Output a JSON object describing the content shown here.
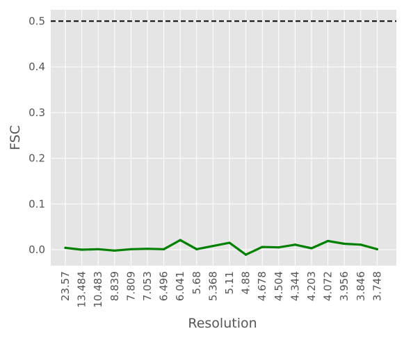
{
  "chart_data": {
    "type": "line",
    "title": "",
    "xlabel": "Resolution",
    "ylabel": "FSC",
    "categories": [
      "23.57",
      "13.484",
      "10.483",
      "8.839",
      "7.809",
      "7.053",
      "6.496",
      "6.041",
      "5.68",
      "5.368",
      "5.11",
      "4.88",
      "4.678",
      "4.504",
      "4.344",
      "4.203",
      "4.072",
      "3.956",
      "3.846",
      "3.748"
    ],
    "series": [
      {
        "color": "#008000",
        "values": [
          0.004,
          0.0,
          0.001,
          -0.002,
          0.001,
          0.002,
          0.001,
          0.021,
          0.001,
          0.008,
          0.015,
          -0.011,
          0.006,
          0.005,
          0.011,
          0.003,
          0.019,
          0.013,
          0.011,
          0.001
        ]
      }
    ],
    "reference_line": {
      "y": 0.5,
      "style": "dashed",
      "color": "#000000"
    },
    "ylim": [
      -0.035,
      0.525
    ],
    "yticks": [
      "0.0",
      "0.1",
      "0.2",
      "0.3",
      "0.4",
      "0.5"
    ],
    "grid": true,
    "style": {
      "background": "#e5e5e5",
      "grid_color": "#ffffff"
    }
  }
}
